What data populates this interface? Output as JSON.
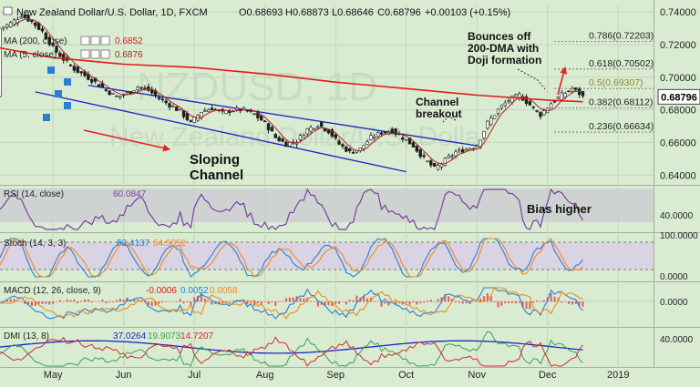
{
  "header": {
    "title": "New Zealand Dollar/U.S. Dollar, 1D, FXCM",
    "ohlc": [
      "O0.68693",
      "H0.68873",
      "L0.68646",
      "C0.68796",
      "+0.00103 (+0.15%)"
    ]
  },
  "watermark": {
    "symbol": "NZDUSD, 1D",
    "name": "New Zealand Dollar/U.S. Dollar"
  },
  "indicators": {
    "ma200": {
      "label": "MA (200, close)",
      "value": "0.6852"
    },
    "ma5": {
      "label": "MA (5, close)",
      "value": "0.6876"
    }
  },
  "colors": {
    "background": "#d9ecd2",
    "grid": "#c3d6bd",
    "ma200": "#e31a1a",
    "ma5": "#b0241f",
    "channel": "#1c23c8",
    "candle": "#1f1f1f",
    "band": "#d9cfe6",
    "annotation": "#e32222"
  },
  "fib_levels": [
    {
      "label": "0.786(0.72203)",
      "value": 0.72203
    },
    {
      "label": "0.618(0.70502)",
      "value": 0.70502
    },
    {
      "label": "0.5(0.69307)",
      "value": 0.69307
    },
    {
      "label": "0.382(0.68112)",
      "value": 0.68112
    },
    {
      "label": "0.236(0.66634)",
      "value": 0.66634
    }
  ],
  "annotations": {
    "sloping_channel": "Sloping\nChannel",
    "channel_breakout": "Channel\nbreakout",
    "bounces": "Bounces off\n200-DMA with\nDoji formation",
    "bias_higher": "Bias higher"
  },
  "panes": {
    "rsi": {
      "label": "RSI (14, close)",
      "value": "60.0847",
      "axis_labels": [
        "40.0000"
      ]
    },
    "stoch": {
      "label": "Stoch (14, 3, 3)",
      "k": "53.4137",
      "d": "54.5052",
      "axis_labels": [
        "100.0000",
        "0.0000"
      ]
    },
    "macd": {
      "label": "MACD (12, 26, close, 9)",
      "values": [
        "-0.0006",
        "0.0052",
        "0.0058"
      ],
      "axis_labels": [
        "0.0000"
      ]
    },
    "dmi": {
      "label": "DMI (13, 8)",
      "values": [
        "37.0264",
        "19.9073",
        "14.7207"
      ],
      "axis_labels": [
        "40.0000"
      ]
    }
  },
  "x_axis": [
    "May",
    "Jun",
    "Jul",
    "Aug",
    "Sep",
    "Oct",
    "Nov",
    "Dec",
    "2019"
  ],
  "chart_data": {
    "type": "line",
    "title": "New Zealand Dollar/U.S. Dollar, 1D, FXCM",
    "ylim": [
      0.634,
      0.744
    ],
    "y_ticks": [
      0.74,
      0.72,
      0.7,
      0.68,
      0.66,
      0.64
    ],
    "y_tick_labels": [
      "0.74000",
      "0.72000",
      "0.70000",
      "0.68000",
      "0.66000",
      "0.64000"
    ],
    "last_price": 0.68796,
    "last_price_label": "0.68796",
    "x_labels": [
      "May",
      "Jun",
      "Jul",
      "Aug",
      "Sep",
      "Oct",
      "Nov",
      "Dec",
      "2019"
    ],
    "x_ticks": [
      0,
      20,
      40,
      60,
      80,
      100,
      120,
      140,
      160
    ],
    "x_range": [
      -15,
      170
    ],
    "close_series": [
      [
        -15,
        0.73
      ],
      [
        -12,
        0.733
      ],
      [
        -9,
        0.738
      ],
      [
        -6,
        0.734
      ],
      [
        -3,
        0.728
      ],
      [
        0,
        0.718
      ],
      [
        3,
        0.711
      ],
      [
        6,
        0.705
      ],
      [
        9,
        0.701
      ],
      [
        12,
        0.697
      ],
      [
        15,
        0.692
      ],
      [
        18,
        0.688
      ],
      [
        21,
        0.69
      ],
      [
        24,
        0.694
      ],
      [
        27,
        0.692
      ],
      [
        30,
        0.687
      ],
      [
        33,
        0.683
      ],
      [
        36,
        0.679
      ],
      [
        39,
        0.672
      ],
      [
        42,
        0.679
      ],
      [
        45,
        0.681
      ],
      [
        48,
        0.678
      ],
      [
        51,
        0.68
      ],
      [
        54,
        0.68
      ],
      [
        57,
        0.677
      ],
      [
        60,
        0.672
      ],
      [
        63,
        0.663
      ],
      [
        66,
        0.659
      ],
      [
        69,
        0.661
      ],
      [
        72,
        0.668
      ],
      [
        75,
        0.671
      ],
      [
        78,
        0.667
      ],
      [
        81,
        0.659
      ],
      [
        84,
        0.654
      ],
      [
        87,
        0.656
      ],
      [
        90,
        0.663
      ],
      [
        93,
        0.666
      ],
      [
        96,
        0.667
      ],
      [
        99,
        0.663
      ],
      [
        102,
        0.658
      ],
      [
        105,
        0.65
      ],
      [
        108,
        0.644
      ],
      [
        111,
        0.649
      ],
      [
        114,
        0.654
      ],
      [
        117,
        0.656
      ],
      [
        120,
        0.658
      ],
      [
        123,
        0.672
      ],
      [
        126,
        0.68
      ],
      [
        129,
        0.686
      ],
      [
        132,
        0.689
      ],
      [
        135,
        0.683
      ],
      [
        138,
        0.677
      ],
      [
        141,
        0.684
      ],
      [
        144,
        0.689
      ],
      [
        147,
        0.693
      ],
      [
        149,
        0.69
      ],
      [
        150,
        0.688
      ]
    ],
    "ma200_series": [
      [
        -15,
        0.718
      ],
      [
        0,
        0.712
      ],
      [
        20,
        0.708
      ],
      [
        40,
        0.706
      ],
      [
        60,
        0.702
      ],
      [
        80,
        0.697
      ],
      [
        100,
        0.693
      ],
      [
        120,
        0.689
      ],
      [
        140,
        0.686
      ],
      [
        150,
        0.685
      ]
    ],
    "channel": {
      "upper": [
        [
          10,
          0.695
        ],
        [
          120,
          0.658
        ]
      ],
      "lower": [
        [
          -5,
          0.691
        ],
        [
          100,
          0.642
        ]
      ]
    }
  }
}
